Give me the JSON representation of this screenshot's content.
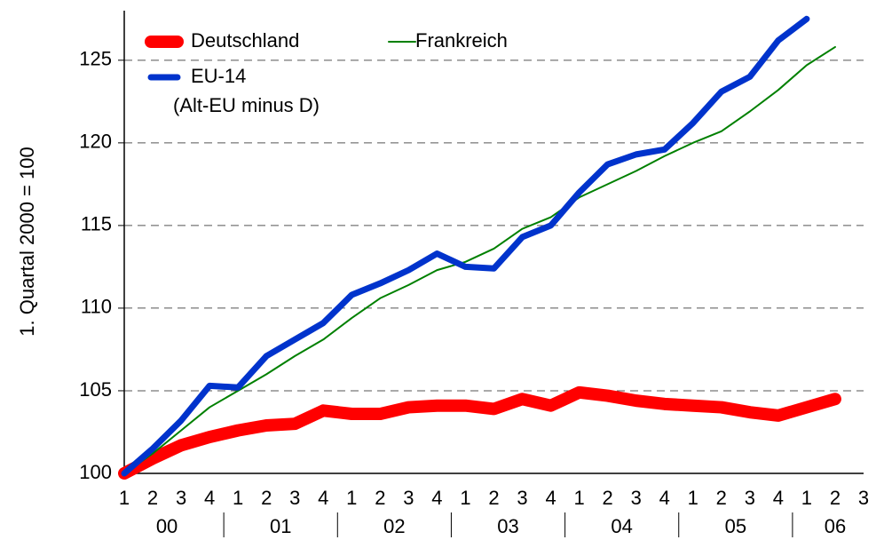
{
  "chart_data": {
    "type": "line",
    "ylabel": "1. Quartal 2000 = 100",
    "categories": [
      "1",
      "2",
      "3",
      "4",
      "1",
      "2",
      "3",
      "4",
      "1",
      "2",
      "3",
      "4",
      "1",
      "2",
      "3",
      "4",
      "1",
      "2",
      "3",
      "4",
      "1",
      "2",
      "3",
      "4",
      "1",
      "2",
      "3"
    ],
    "groups": [
      {
        "label": "00",
        "size": 4
      },
      {
        "label": "01",
        "size": 4
      },
      {
        "label": "02",
        "size": 4
      },
      {
        "label": "03",
        "size": 4
      },
      {
        "label": "04",
        "size": 4
      },
      {
        "label": "05",
        "size": 4
      },
      {
        "label": "06",
        "size": 3
      }
    ],
    "series": [
      {
        "name": "Deutschland",
        "color": "#ff0000",
        "width": 14,
        "values": [
          100,
          100.9,
          101.7,
          102.2,
          102.6,
          102.9,
          103.0,
          103.8,
          103.6,
          103.6,
          104.0,
          104.1,
          104.1,
          103.9,
          104.5,
          104.1,
          104.9,
          104.7,
          104.4,
          104.2,
          104.1,
          104.0,
          103.7,
          103.5,
          104.0,
          104.5,
          null
        ]
      },
      {
        "name": "Frankreich",
        "color": "#008000",
        "width": 2,
        "values": [
          100,
          101.2,
          102.6,
          104.0,
          105.0,
          106.0,
          107.1,
          108.1,
          109.4,
          110.6,
          111.4,
          112.3,
          112.8,
          113.6,
          114.8,
          115.5,
          116.7,
          117.5,
          118.3,
          119.2,
          120.0,
          120.7,
          121.9,
          123.2,
          124.7,
          125.8,
          null
        ]
      },
      {
        "name": "EU-14",
        "color": "#0033cc",
        "width": 7,
        "values": [
          100,
          101.5,
          103.2,
          105.3,
          105.2,
          107.1,
          108.1,
          109.1,
          110.8,
          111.5,
          112.3,
          113.3,
          112.5,
          112.4,
          114.3,
          115.0,
          117.0,
          118.7,
          119.3,
          119.6,
          121.2,
          123.1,
          124.0,
          126.2,
          127.5,
          null,
          null
        ]
      }
    ],
    "legend_note": "(Alt-EU minus D)",
    "ylim": [
      100,
      128
    ],
    "yticks": [
      100,
      105,
      110,
      115,
      120,
      125
    ],
    "grid": true,
    "legend": "upper left"
  }
}
